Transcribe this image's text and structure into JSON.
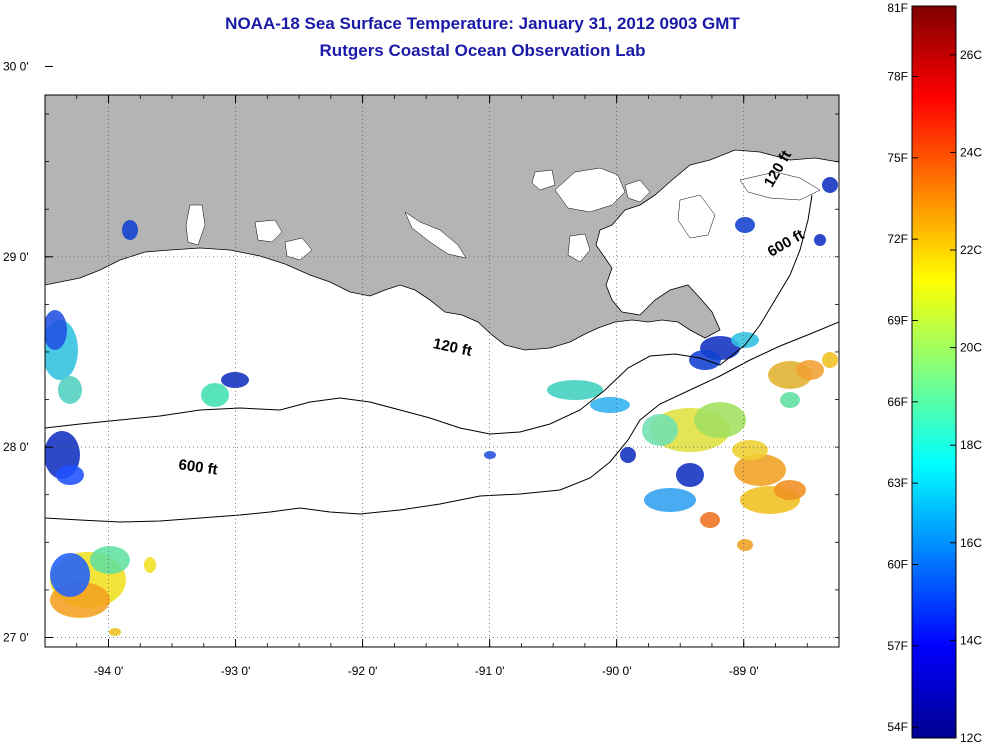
{
  "title_line1": "NOAA-18 Sea Surface Temperature:  January 31, 2012 0903 GMT",
  "title_line2": "Rutgers Coastal Ocean Observation Lab",
  "map": {
    "lon_range": [
      -94.5,
      -88.25
    ],
    "lat_range": [
      26.95,
      29.85
    ],
    "lon_ticks": [
      {
        "value": -94,
        "label": "-94 0'"
      },
      {
        "value": -93,
        "label": "-93 0'"
      },
      {
        "value": -92,
        "label": "-92 0'"
      },
      {
        "value": -91,
        "label": "-91 0'"
      },
      {
        "value": -90,
        "label": "-90 0'"
      },
      {
        "value": -89,
        "label": "-89 0'"
      }
    ],
    "lat_ticks": [
      {
        "value": 27,
        "label": "27 0'"
      },
      {
        "value": 28,
        "label": "28 0'"
      },
      {
        "value": 29,
        "label": "29 0'"
      },
      {
        "value": 30,
        "label": "30 0'"
      }
    ],
    "contour_labels": [
      {
        "text": "120 ft",
        "lon": -91.3,
        "lat": 28.5,
        "angle": 12
      },
      {
        "text": "600 ft",
        "lon": -93.3,
        "lat": 27.87,
        "angle": 8
      },
      {
        "text": "120 ft",
        "lon": -88.7,
        "lat": 29.45,
        "angle": -60
      },
      {
        "text": "600 ft",
        "lon": -88.65,
        "lat": 29.05,
        "angle": -30
      }
    ],
    "land_color": "#b4b4b4",
    "grid": true
  },
  "colorbar": {
    "fahrenheit_labels": [
      "81F",
      "78F",
      "75F",
      "72F",
      "69F",
      "66F",
      "63F",
      "60F",
      "57F",
      "54F"
    ],
    "celsius_labels": [
      "26C",
      "24C",
      "22C",
      "20C",
      "18C",
      "16C",
      "14C",
      "12C"
    ],
    "colormap": "jet",
    "range_c": [
      12,
      27
    ]
  }
}
